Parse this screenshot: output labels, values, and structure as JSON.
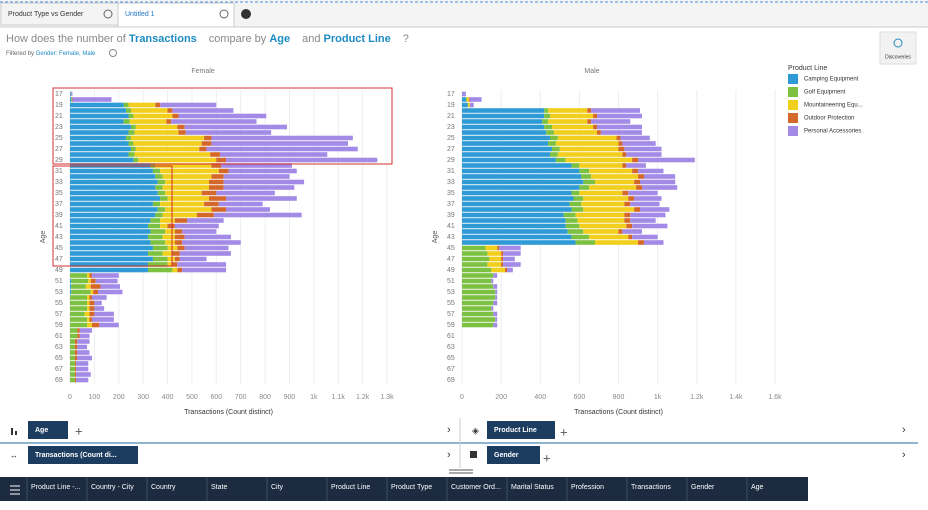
{
  "tabs": [
    "Product Type vs Gender",
    "Untitled 1"
  ],
  "question": {
    "prefix": "How does the number of",
    "measure": "Transactions",
    "mid": "compare by",
    "dim1": "Age",
    "conj": "and",
    "dim2": "Product Line",
    "end": "?"
  },
  "filter": {
    "label": "Filtered by",
    "value": "Gender: Female, Male"
  },
  "discover": "Discoveries",
  "legend": {
    "title": "Product Line"
  },
  "toolbar": {
    "rows": "Age",
    "color": "Product Line",
    "measure": "Transactions (Count di...",
    "split": "Gender"
  },
  "columns": [
    "Product Line -...",
    "Country - City",
    "Country",
    "State",
    "City",
    "Product Line",
    "Product Type",
    "Customer Ord...",
    "Marital Status",
    "Profession",
    "Transactions",
    "Gender",
    "Age"
  ],
  "chart_data": [
    {
      "type": "bar",
      "orientation": "horizontal",
      "stacked": true,
      "title": "Female",
      "x_label": "Transactions (Count distinct)",
      "y_label": "Age",
      "categories": [
        "17",
        null,
        "19",
        null,
        "21",
        null,
        "23",
        null,
        "25",
        null,
        "27",
        null,
        "29",
        null,
        "31",
        null,
        "33",
        null,
        "35",
        null,
        "37",
        null,
        "39",
        null,
        "41",
        null,
        "43",
        null,
        "45",
        null,
        "47",
        null,
        "49",
        null,
        "51",
        null,
        "53",
        null,
        "55",
        null,
        "57",
        null,
        "59",
        null,
        "61",
        null,
        "63",
        null,
        "65",
        null,
        "67",
        null,
        "69"
      ],
      "xlim": [
        0,
        1300
      ],
      "xticks": [
        0,
        100,
        200,
        300,
        400,
        500,
        600,
        700,
        800,
        900,
        {
          "value": 1000,
          "label": "1k"
        },
        {
          "value": 1100,
          "label": "1.1k"
        },
        {
          "value": 1200,
          "label": "1.2k"
        },
        {
          "value": 1300,
          "label": "1.3k"
        }
      ],
      "grid": true,
      "series": [
        {
          "name": "Camping Equipment",
          "color": "#2e9bd6",
          "values": [
            3,
            5,
            220,
            230,
            240,
            220,
            250,
            240,
            230,
            240,
            250,
            240,
            260,
            330,
            340,
            350,
            360,
            350,
            360,
            370,
            340,
            360,
            350,
            330,
            320,
            330,
            320,
            330,
            340,
            320,
            340,
            320,
            320,
            0,
            5,
            5,
            5,
            0,
            0,
            0,
            0,
            0,
            0,
            0,
            0,
            0,
            0,
            0,
            0,
            0,
            0,
            0,
            0
          ]
        },
        {
          "name": "Golf Equipment",
          "color": "#7cc142",
          "values": [
            2,
            3,
            20,
            20,
            20,
            25,
            20,
            25,
            20,
            20,
            20,
            25,
            20,
            20,
            30,
            30,
            30,
            30,
            30,
            30,
            30,
            30,
            30,
            40,
            50,
            60,
            60,
            60,
            60,
            60,
            60,
            80,
            100,
            70,
            70,
            60,
            80,
            70,
            70,
            70,
            60,
            70,
            70,
            30,
            30,
            20,
            20,
            20,
            20,
            20,
            20,
            20,
            20
          ]
        },
        {
          "name": "Mountaineering Equ...",
          "color": "#f2cf1d",
          "values": [
            0,
            0,
            110,
            150,
            160,
            150,
            170,
            180,
            300,
            280,
            260,
            310,
            320,
            230,
            240,
            200,
            180,
            190,
            150,
            170,
            180,
            190,
            140,
            60,
            30,
            40,
            50,
            40,
            40,
            40,
            30,
            20,
            20,
            10,
            10,
            20,
            10,
            10,
            10,
            10,
            20,
            10,
            20,
            0,
            0,
            0,
            0,
            0,
            0,
            0,
            0,
            0,
            0
          ]
        },
        {
          "name": "Outdoor Protection",
          "color": "#d4682a",
          "values": [
            0,
            2,
            20,
            20,
            25,
            20,
            30,
            30,
            30,
            40,
            30,
            40,
            40,
            40,
            40,
            50,
            60,
            60,
            60,
            70,
            60,
            60,
            70,
            50,
            30,
            30,
            40,
            30,
            30,
            30,
            20,
            20,
            20,
            10,
            20,
            40,
            20,
            10,
            20,
            20,
            20,
            10,
            30,
            10,
            10,
            10,
            10,
            10,
            10,
            5,
            5,
            5,
            5
          ]
        },
        {
          "name": "Personal Accessories",
          "color": "#a38ae6",
          "values": [
            5,
            160,
            230,
            250,
            360,
            350,
            420,
            350,
            580,
            560,
            620,
            440,
            620,
            290,
            280,
            270,
            330,
            290,
            240,
            290,
            180,
            180,
            360,
            150,
            180,
            140,
            190,
            240,
            180,
            210,
            110,
            200,
            180,
            110,
            90,
            80,
            100,
            60,
            30,
            40,
            80,
            90,
            80,
            50,
            40,
            50,
            40,
            50,
            60,
            50,
            50,
            60,
            50
          ]
        }
      ]
    },
    {
      "type": "bar",
      "orientation": "horizontal",
      "stacked": true,
      "title": "Male",
      "x_label": "Transactions (Count distinct)",
      "y_label": "Age",
      "categories": [
        "17",
        null,
        "19",
        null,
        "21",
        null,
        "23",
        null,
        "25",
        null,
        "27",
        null,
        "29",
        null,
        "31",
        null,
        "33",
        null,
        "35",
        null,
        "37",
        null,
        "39",
        null,
        "41",
        null,
        "43",
        null,
        "45",
        null,
        "47",
        null,
        "49",
        null,
        "51",
        null,
        "53",
        null,
        "55",
        null,
        "57",
        null,
        "59",
        null,
        "61",
        null,
        "63",
        null,
        "65",
        null,
        "67",
        null,
        "69"
      ],
      "xlim": [
        0,
        1600
      ],
      "xticks": [
        0,
        200,
        400,
        600,
        800,
        {
          "value": 1000,
          "label": "1k"
        },
        {
          "value": 1200,
          "label": "1.2k"
        },
        {
          "value": 1400,
          "label": "1.4k"
        },
        {
          "value": 1600,
          "label": "1.6k"
        }
      ],
      "grid": true,
      "series": [
        {
          "name": "Camping Equipment",
          "color": "#2e9bd6",
          "values": [
            0,
            20,
            30,
            420,
            420,
            410,
            420,
            430,
            450,
            440,
            460,
            450,
            480,
            560,
            600,
            610,
            620,
            600,
            560,
            570,
            550,
            560,
            520,
            530,
            530,
            540,
            560,
            580,
            0,
            0,
            0,
            0,
            0,
            0,
            0,
            0,
            0,
            0,
            0,
            0,
            0,
            0,
            0,
            0,
            0,
            0,
            0,
            0,
            0,
            0,
            0,
            0,
            0
          ]
        },
        {
          "name": "Golf Equipment",
          "color": "#7cc142",
          "values": [
            0,
            5,
            0,
            20,
            30,
            30,
            40,
            40,
            40,
            40,
            40,
            40,
            50,
            40,
            50,
            50,
            60,
            50,
            40,
            50,
            60,
            60,
            60,
            60,
            70,
            80,
            90,
            100,
            120,
            130,
            140,
            130,
            150,
            160,
            150,
            160,
            170,
            170,
            160,
            150,
            160,
            170,
            160,
            0,
            0,
            0,
            0,
            0,
            0,
            0,
            0,
            0,
            0
          ]
        },
        {
          "name": "Mountaineering Equ...",
          "color": "#f2cf1d",
          "values": [
            0,
            10,
            10,
            200,
            220,
            200,
            210,
            220,
            300,
            320,
            300,
            330,
            340,
            220,
            220,
            240,
            200,
            240,
            220,
            230,
            220,
            260,
            250,
            240,
            240,
            180,
            200,
            220,
            60,
            70,
            60,
            70,
            70,
            0,
            0,
            0,
            0,
            0,
            0,
            0,
            0,
            0,
            0,
            0,
            0,
            0,
            0,
            0,
            0,
            0,
            0,
            0,
            0
          ]
        },
        {
          "name": "Outdoor Protection",
          "color": "#d4682a",
          "values": [
            0,
            5,
            0,
            20,
            20,
            20,
            20,
            20,
            20,
            20,
            30,
            20,
            30,
            20,
            30,
            30,
            30,
            30,
            30,
            30,
            30,
            30,
            30,
            30,
            30,
            20,
            20,
            30,
            10,
            10,
            10,
            10,
            10,
            0,
            0,
            0,
            0,
            0,
            0,
            0,
            0,
            0,
            0,
            0,
            0,
            0,
            0,
            0,
            0,
            0,
            0,
            0,
            0
          ]
        },
        {
          "name": "Personal Accessories",
          "color": "#a38ae6",
          "values": [
            20,
            60,
            20,
            250,
            230,
            200,
            230,
            210,
            150,
            170,
            190,
            180,
            290,
            100,
            130,
            160,
            180,
            180,
            150,
            140,
            150,
            150,
            180,
            130,
            180,
            100,
            130,
            100,
            110,
            90,
            60,
            90,
            30,
            20,
            10,
            20,
            10,
            10,
            20,
            10,
            20,
            10,
            20,
            0,
            0,
            0,
            0,
            0,
            0,
            0,
            0,
            0,
            0
          ]
        }
      ]
    }
  ]
}
